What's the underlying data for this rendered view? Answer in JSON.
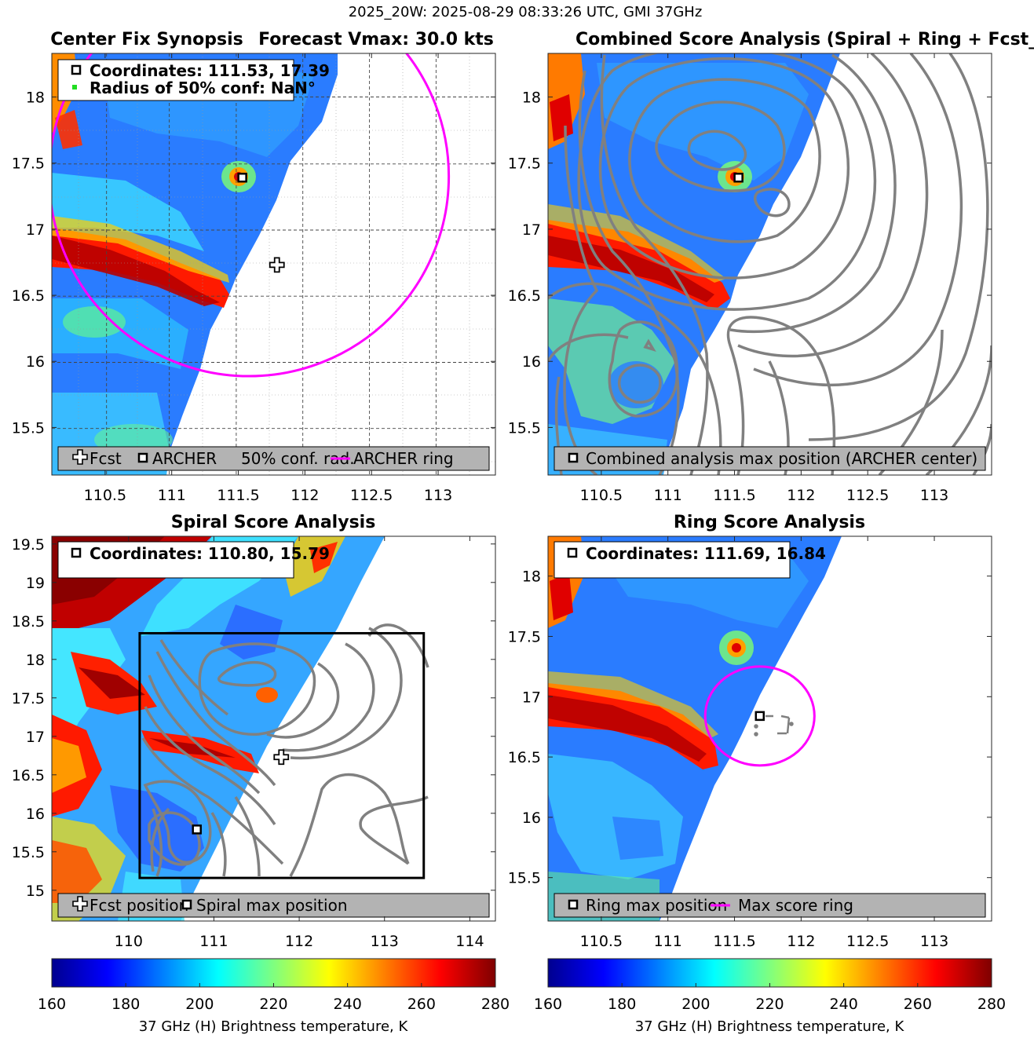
{
  "figure_title": "2025_20W: 2025-08-29 08:33:26 UTC, GMI 37GHz",
  "colors": {
    "forecast_ring": "#ff00ff",
    "contour": "#808080",
    "legend_bg": "#b3b3b3",
    "marker": "#000000"
  },
  "colormap": [
    "#00008f",
    "#0000ff",
    "#007fff",
    "#00ffff",
    "#7fff7f",
    "#ffff00",
    "#ff7f00",
    "#ff0000",
    "#7f0000"
  ],
  "chart_data": [
    {
      "id": "center-fix",
      "type": "heatmap",
      "title": "Center Fix Synopsis",
      "title_right": "Forecast Vmax: 30.0 kts",
      "x_ticks": [
        "110.5",
        "111",
        "111.5",
        "112",
        "112.5",
        "113"
      ],
      "y_ticks": [
        "18",
        "17.5",
        "17",
        "16.5",
        "16",
        "15.5"
      ],
      "xlim": [
        110.1,
        113.43
      ],
      "ylim": [
        15.14,
        18.33
      ],
      "info_lines": [
        "Coordinates: 111.53, 17.39",
        "Radius of 50% conf: NaN°"
      ],
      "legend": [
        "Fcst",
        "ARCHER",
        "50% conf. rad.",
        "ARCHER ring"
      ],
      "archer_center": [
        111.53,
        17.39
      ],
      "forecast_position": [
        111.79,
        16.73
      ],
      "forecast_ring": {
        "center": [
          111.58,
          17.4
        ],
        "radius": 1.5
      }
    },
    {
      "id": "combined-score",
      "type": "heatmap",
      "title": "Combined Score Analysis (Spiral + Ring + Fcst_Pe",
      "x_ticks": [
        "110.5",
        "111",
        "111.5",
        "112",
        "112.5",
        "113"
      ],
      "y_ticks": [
        "18",
        "17.5",
        "17",
        "16.5",
        "16",
        "15.5"
      ],
      "xlim": [
        110.1,
        113.43
      ],
      "ylim": [
        15.14,
        18.33
      ],
      "legend": [
        "Combined analysis max position (ARCHER center)"
      ],
      "max_position": [
        111.53,
        17.39
      ]
    },
    {
      "id": "spiral-score",
      "type": "heatmap",
      "title": "Spiral Score Analysis",
      "x_ticks": [
        "110",
        "111",
        "112",
        "113",
        "114"
      ],
      "y_ticks": [
        "19.5",
        "19",
        "18.5",
        "18",
        "17.5",
        "17",
        "16.5",
        "16",
        "15.5",
        "15"
      ],
      "xlim": [
        109.1,
        114.3
      ],
      "ylim": [
        14.6,
        19.6
      ],
      "info_lines": [
        "Coordinates: 110.80, 15.79"
      ],
      "legend": [
        "Fcst position",
        "Spiral max position"
      ],
      "max_position": [
        110.8,
        15.79
      ],
      "forecast_position": [
        111.79,
        16.73
      ],
      "search_box": {
        "x": [
          110.13,
          113.46
        ],
        "y": [
          15.16,
          18.34
        ]
      }
    },
    {
      "id": "ring-score",
      "type": "heatmap",
      "title": "Ring Score Analysis",
      "x_ticks": [
        "110.5",
        "111",
        "111.5",
        "112",
        "112.5",
        "113"
      ],
      "y_ticks": [
        "18",
        "17.5",
        "17",
        "16.5",
        "16",
        "15.5"
      ],
      "xlim": [
        110.1,
        113.43
      ],
      "ylim": [
        15.14,
        18.33
      ],
      "info_lines": [
        "Coordinates: 111.69, 16.84"
      ],
      "legend": [
        "Ring max position",
        "Max score ring"
      ],
      "max_position": [
        111.69,
        16.84
      ],
      "max_score_ring": {
        "center": [
          111.69,
          16.84
        ],
        "radius": 0.41
      }
    }
  ],
  "colorbars": [
    {
      "label": "37 GHz (H) Brightness temperature, K",
      "range": [
        160,
        280
      ],
      "ticks": [
        "160",
        "180",
        "200",
        "220",
        "240",
        "260",
        "280"
      ]
    },
    {
      "label": "37 GHz (H) Brightness temperature, K",
      "range": [
        160,
        280
      ],
      "ticks": [
        "160",
        "180",
        "200",
        "220",
        "240",
        "260",
        "280"
      ]
    }
  ]
}
